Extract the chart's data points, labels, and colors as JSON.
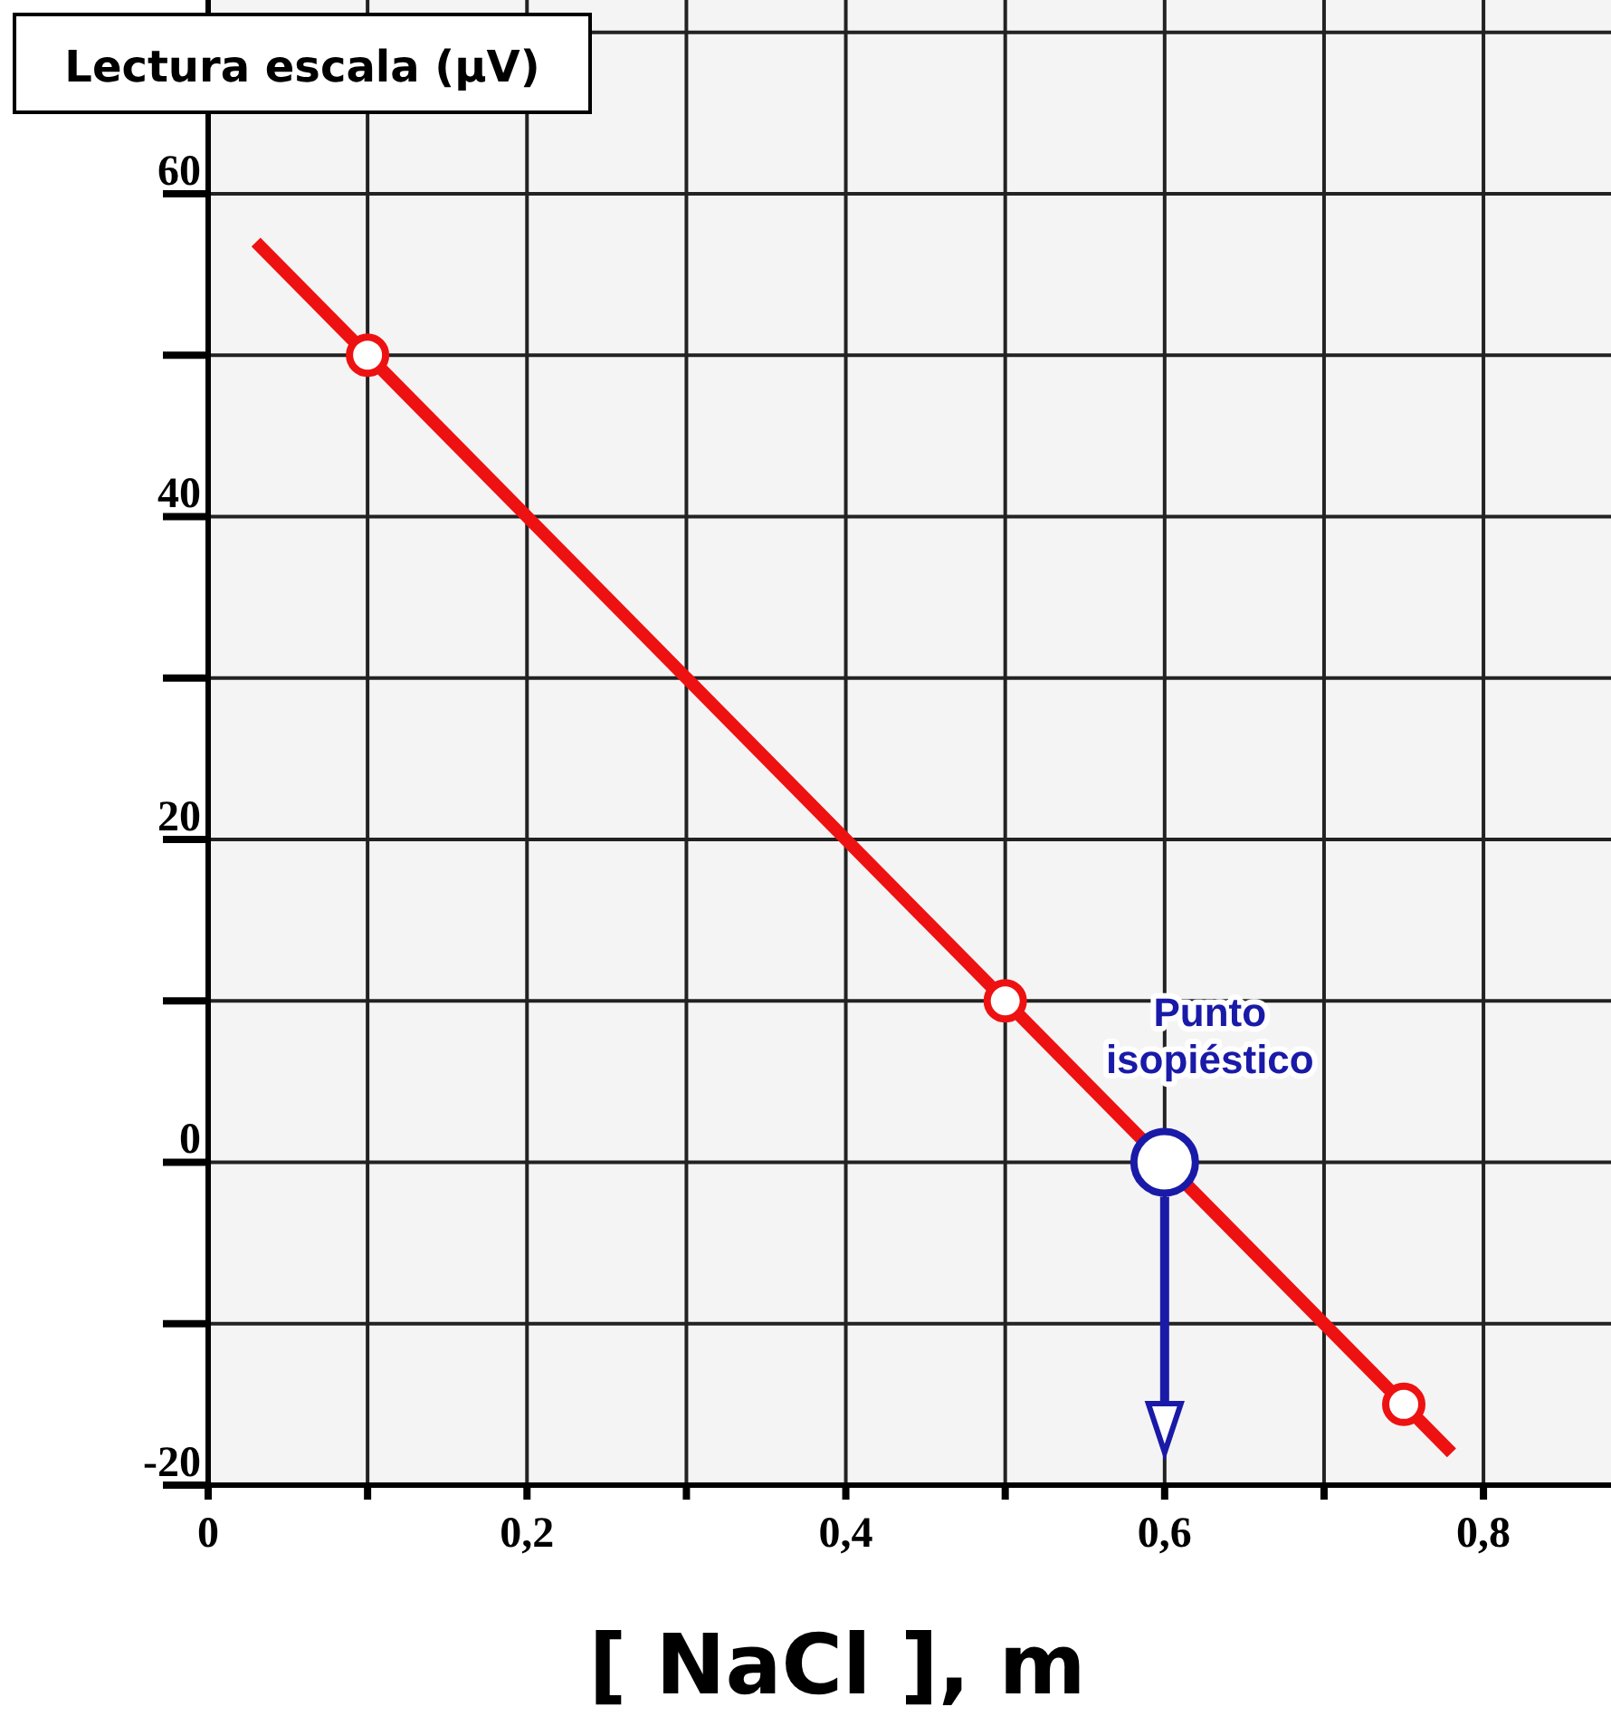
{
  "chart_data": {
    "type": "line",
    "ylabel": "Lectura escala (μV)",
    "xlabel": "[ NaCl ], m",
    "xlim": [
      0,
      0.88
    ],
    "ylim": [
      -20,
      72
    ],
    "xticks": [
      0,
      {
        "value": 0.1,
        "label": null
      },
      {
        "value": 0.2,
        "label": "0,2"
      },
      {
        "value": 0.3,
        "label": null
      },
      {
        "value": 0.4,
        "label": "0,4"
      },
      {
        "value": 0.5,
        "label": null
      },
      {
        "value": 0.6,
        "label": "0,6"
      },
      {
        "value": 0.7,
        "label": null
      },
      {
        "value": 0.8,
        "label": "0,8"
      }
    ],
    "yticks": [
      -20,
      {
        "value": -10,
        "label": null
      },
      0,
      {
        "value": 10,
        "label": null
      },
      20,
      {
        "value": 30,
        "label": null
      },
      40,
      {
        "value": 50,
        "label": null
      },
      60,
      {
        "value": 70,
        "label": null
      }
    ],
    "grid": true,
    "line_style": "solid",
    "series": [
      {
        "color": "#ee1111",
        "x": [
          0.03,
          0.78
        ],
        "values": [
          57,
          -18
        ],
        "marker": "none"
      },
      {
        "type": "scatter",
        "color": "#ee1111",
        "x": [
          0.1,
          0.5,
          0.75
        ],
        "values": [
          50,
          10,
          -15
        ],
        "marker": "circle"
      },
      {
        "type": "scatter",
        "color": "#1a1aa8",
        "x": [
          0.6
        ],
        "values": [
          0
        ],
        "marker": "circle"
      }
    ],
    "annotations": [
      {
        "text": "Punto isopiéstico",
        "x": 0.6,
        "y": 0
      }
    ]
  }
}
